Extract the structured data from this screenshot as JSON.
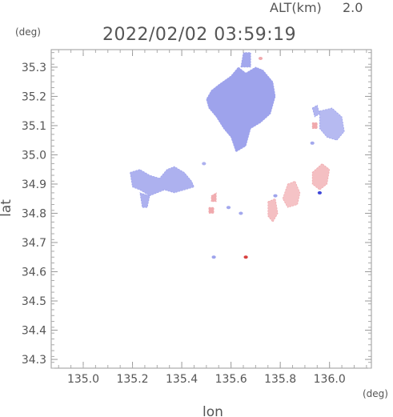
{
  "header": {
    "alt_label": "ALT(km)",
    "alt_value": "2.0",
    "timestamp": "2022/02/02 03:59:19",
    "y_unit": "(deg)",
    "x_unit": "(deg)"
  },
  "chart_data": {
    "type": "heatmap",
    "xlabel": "lon",
    "ylabel": "lat",
    "xlim": [
      134.87,
      136.17
    ],
    "ylim": [
      34.27,
      35.36
    ],
    "x_ticks": [
      135.0,
      135.2,
      135.4,
      135.6,
      135.8,
      136.0
    ],
    "x_tick_labels": [
      "135.0",
      "135.2",
      "135.4",
      "135.6",
      "135.8",
      "136.0"
    ],
    "y_ticks": [
      34.3,
      34.4,
      34.5,
      34.6,
      34.7,
      34.8,
      34.9,
      35.0,
      35.1,
      35.2,
      35.3
    ],
    "y_tick_labels": [
      "34.3",
      "34.4",
      "34.5",
      "34.6",
      "34.7",
      "34.8",
      "34.9",
      "35.0",
      "35.1",
      "35.2",
      "35.3"
    ],
    "colors": {
      "negative": "#9ea3ec",
      "positive": "#f0a9ad",
      "strong_negative": "#3f48d8",
      "strong_positive": "#d8413f"
    },
    "echo_regions": [
      {
        "name": "north-cluster",
        "sign": "negative",
        "strength": 0.55,
        "polygon": [
          [
            135.52,
            35.22
          ],
          [
            135.55,
            35.24
          ],
          [
            135.6,
            35.27
          ],
          [
            135.63,
            35.3
          ],
          [
            135.66,
            35.28
          ],
          [
            135.7,
            35.3
          ],
          [
            135.73,
            35.29
          ],
          [
            135.77,
            35.25
          ],
          [
            135.78,
            35.2
          ],
          [
            135.76,
            35.14
          ],
          [
            135.72,
            35.11
          ],
          [
            135.68,
            35.09
          ],
          [
            135.66,
            35.03
          ],
          [
            135.62,
            35.01
          ],
          [
            135.6,
            35.06
          ],
          [
            135.57,
            35.09
          ],
          [
            135.54,
            35.13
          ],
          [
            135.51,
            35.16
          ],
          [
            135.5,
            35.19
          ]
        ]
      },
      {
        "name": "north-cap",
        "sign": "negative",
        "strength": 0.5,
        "polygon": [
          [
            135.64,
            35.3
          ],
          [
            135.65,
            35.35
          ],
          [
            135.68,
            35.35
          ],
          [
            135.68,
            35.3
          ]
        ]
      },
      {
        "name": "west-cluster",
        "sign": "negative",
        "strength": 0.4,
        "polygon": [
          [
            135.19,
            34.94
          ],
          [
            135.23,
            34.95
          ],
          [
            135.27,
            34.93
          ],
          [
            135.31,
            34.92
          ],
          [
            135.34,
            34.95
          ],
          [
            135.37,
            34.96
          ],
          [
            135.41,
            34.94
          ],
          [
            135.44,
            34.91
          ],
          [
            135.45,
            34.89
          ],
          [
            135.41,
            34.88
          ],
          [
            135.37,
            34.87
          ],
          [
            135.33,
            34.88
          ],
          [
            135.27,
            34.86
          ],
          [
            135.23,
            34.88
          ],
          [
            135.2,
            34.89
          ]
        ]
      },
      {
        "name": "west-tail",
        "sign": "negative",
        "strength": 0.4,
        "polygon": [
          [
            135.23,
            34.87
          ],
          [
            135.27,
            34.86
          ],
          [
            135.26,
            34.82
          ],
          [
            135.24,
            34.82
          ]
        ]
      },
      {
        "name": "east-cluster",
        "sign": "negative",
        "strength": 0.3,
        "polygon": [
          [
            135.96,
            35.15
          ],
          [
            136.01,
            35.16
          ],
          [
            136.05,
            35.13
          ],
          [
            136.06,
            35.08
          ],
          [
            136.03,
            35.05
          ],
          [
            135.99,
            35.06
          ],
          [
            135.96,
            35.09
          ]
        ]
      },
      {
        "name": "east-speck",
        "sign": "negative",
        "strength": 0.35,
        "polygon": [
          [
            135.93,
            35.16
          ],
          [
            135.95,
            35.17
          ],
          [
            135.96,
            35.14
          ],
          [
            135.94,
            35.13
          ]
        ]
      },
      {
        "name": "south-east-cell",
        "sign": "positive",
        "strength": 0.3,
        "polygon": [
          [
            135.93,
            34.94
          ],
          [
            135.97,
            34.97
          ],
          [
            136.0,
            34.95
          ],
          [
            135.99,
            34.9
          ],
          [
            135.96,
            34.88
          ],
          [
            135.93,
            34.9
          ]
        ]
      },
      {
        "name": "south-cell-a",
        "sign": "positive",
        "strength": 0.25,
        "polygon": [
          [
            135.83,
            34.9
          ],
          [
            135.86,
            34.91
          ],
          [
            135.88,
            34.87
          ],
          [
            135.87,
            34.83
          ],
          [
            135.83,
            34.82
          ],
          [
            135.81,
            34.85
          ]
        ]
      },
      {
        "name": "south-cell-b",
        "sign": "positive",
        "strength": 0.3,
        "polygon": [
          [
            135.75,
            34.84
          ],
          [
            135.78,
            34.85
          ],
          [
            135.79,
            34.8
          ],
          [
            135.77,
            34.77
          ],
          [
            135.75,
            34.79
          ]
        ]
      },
      {
        "name": "mid-speck-a",
        "sign": "positive",
        "strength": 0.5,
        "polygon": [
          [
            135.52,
            34.86
          ],
          [
            135.54,
            34.87
          ],
          [
            135.54,
            34.84
          ],
          [
            135.52,
            34.84
          ]
        ]
      },
      {
        "name": "mid-speck-b",
        "sign": "positive",
        "strength": 0.6,
        "polygon": [
          [
            135.51,
            34.82
          ],
          [
            135.53,
            34.82
          ],
          [
            135.53,
            34.8
          ],
          [
            135.51,
            34.8
          ]
        ]
      },
      {
        "name": "north-east-speck",
        "sign": "positive",
        "strength": 0.6,
        "polygon": [
          [
            135.93,
            35.11
          ],
          [
            135.95,
            35.11
          ],
          [
            135.95,
            35.09
          ],
          [
            135.93,
            35.09
          ]
        ]
      }
    ],
    "echo_points": [
      {
        "lon": 135.96,
        "lat": 34.87,
        "sign": "negative",
        "strength": 1.0
      },
      {
        "lon": 135.66,
        "lat": 34.65,
        "sign": "positive",
        "strength": 1.0
      },
      {
        "lon": 135.53,
        "lat": 34.65,
        "sign": "negative",
        "strength": 0.6
      },
      {
        "lon": 135.72,
        "lat": 35.33,
        "sign": "positive",
        "strength": 0.6
      },
      {
        "lon": 135.64,
        "lat": 34.8,
        "sign": "negative",
        "strength": 0.5
      },
      {
        "lon": 135.59,
        "lat": 34.82,
        "sign": "negative",
        "strength": 0.5
      },
      {
        "lon": 135.49,
        "lat": 34.97,
        "sign": "negative",
        "strength": 0.4
      },
      {
        "lon": 135.93,
        "lat": 35.04,
        "sign": "negative",
        "strength": 0.5
      },
      {
        "lon": 135.78,
        "lat": 34.86,
        "sign": "negative",
        "strength": 0.6
      }
    ]
  }
}
